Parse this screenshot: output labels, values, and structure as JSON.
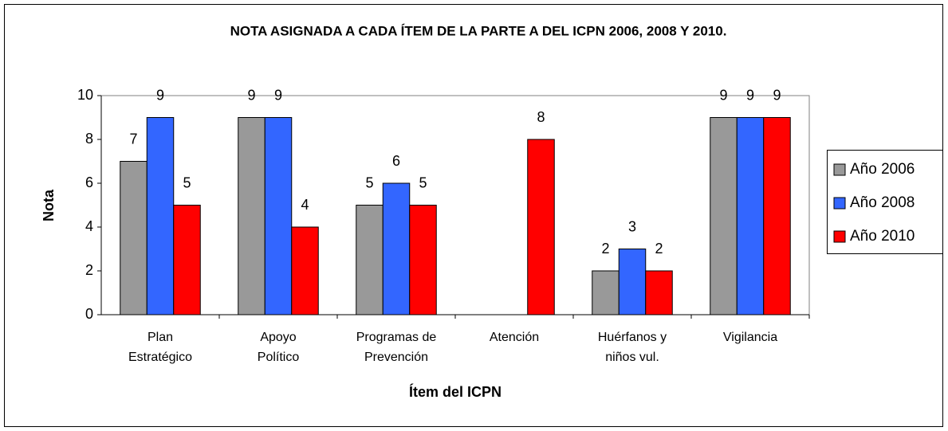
{
  "chart_data": {
    "type": "bar",
    "title": "NOTA ASIGNADA A CADA ÍTEM DE LA PARTE A DEL ICPN 2006, 2008 Y 2010.",
    "x_label": "Ítem del ICPN",
    "y_label": "Nota",
    "categories": [
      [
        "Plan",
        "Estratégico"
      ],
      [
        "Apoyo",
        "Político"
      ],
      [
        "Programas de",
        "Prevención"
      ],
      [
        "Atención"
      ],
      [
        "Huérfanos y",
        "niños vul."
      ],
      [
        "Vigilancia"
      ]
    ],
    "series": [
      {
        "name": "Año 2006",
        "color": "#999999",
        "values": [
          7,
          9,
          5,
          null,
          2,
          9
        ]
      },
      {
        "name": "Año 2008",
        "color": "#3366ff",
        "values": [
          9,
          9,
          6,
          null,
          3,
          9
        ]
      },
      {
        "name": "Año 2010",
        "color": "#ff0000",
        "values": [
          5,
          4,
          5,
          8,
          2,
          9
        ]
      }
    ],
    "ylim": [
      0,
      10
    ],
    "yticks": [
      0,
      2,
      4,
      6,
      8,
      10
    ],
    "grid": false,
    "legend": "right"
  }
}
